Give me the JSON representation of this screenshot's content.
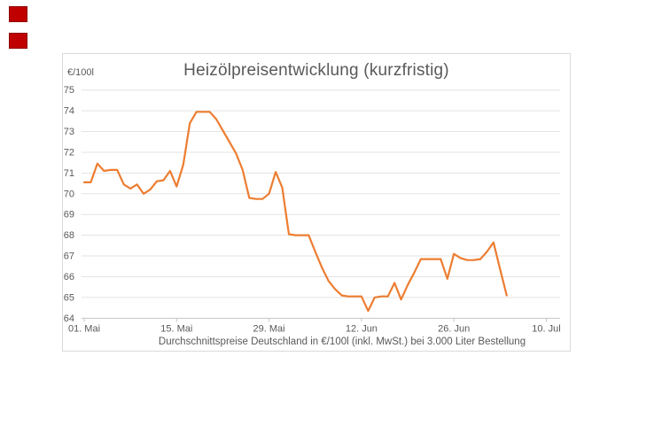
{
  "decorations": {
    "red_square_color": "#C00000"
  },
  "colors": {
    "text": "#595959",
    "grid": "#E3E3E3",
    "axis": "#C6C6C6",
    "border": "#D9D9D9",
    "line": "#ED7D31"
  },
  "chart_data": {
    "type": "line",
    "title": "Heizölpreisentwicklung (kurzfristig)",
    "ylabel": "€/100l",
    "caption": "Durchschnittspreise Deutschland in €/100l (inkl. MwSt.) bei 3.000 Liter Bestellung",
    "ylim": [
      64,
      75
    ],
    "y_ticks": [
      75,
      74,
      73,
      72,
      71,
      70,
      69,
      68,
      67,
      66,
      65,
      64
    ],
    "x_ticks": [
      {
        "label": "01. Mai",
        "day": 0
      },
      {
        "label": "15. Mai",
        "day": 14
      },
      {
        "label": "29. Mai",
        "day": 28
      },
      {
        "label": "12. Jun",
        "day": 42
      },
      {
        "label": "26. Jun",
        "day": 56
      },
      {
        "label": "10. Jul",
        "day": 70
      }
    ],
    "grid": true,
    "legend": "none",
    "line_color": "#ED7D31",
    "series": [
      {
        "name": "Heizölpreis",
        "start_label": "01. Mai",
        "step_days": 1,
        "values": [
          70.55,
          70.55,
          71.45,
          71.1,
          71.15,
          71.15,
          70.45,
          70.25,
          70.45,
          70.0,
          70.2,
          70.6,
          70.65,
          71.1,
          70.35,
          71.4,
          73.4,
          73.95,
          73.95,
          73.95,
          73.6,
          73.05,
          72.5,
          71.95,
          71.15,
          69.8,
          69.75,
          69.75,
          70.0,
          71.05,
          70.3,
          68.05,
          68.0,
          68.0,
          68.0,
          67.2,
          66.45,
          65.8,
          65.4,
          65.1,
          65.05,
          65.05,
          65.05,
          64.35,
          65.0,
          65.05,
          65.05,
          65.7,
          64.9,
          65.6,
          66.2,
          66.85,
          66.85,
          66.85,
          66.85,
          65.9,
          67.1,
          66.9,
          66.8,
          66.8,
          66.85,
          67.2,
          67.65,
          66.35,
          65.1
        ]
      }
    ]
  }
}
